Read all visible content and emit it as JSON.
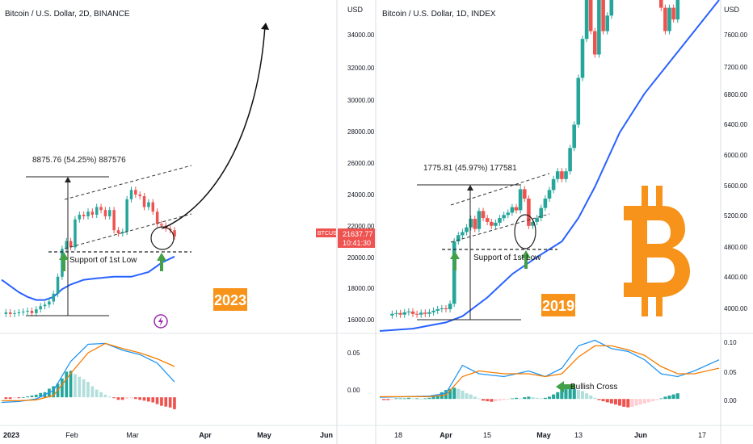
{
  "left_panel": {
    "title": "Bitcoin / U.S. Dollar, 2D, BINANCE",
    "currency_label": "USD",
    "price_ticks": [
      "34000.00",
      "32000.00",
      "30000.00",
      "28000.00",
      "26000.00",
      "24000.00",
      "22000.00",
      "20000.00",
      "18000.00",
      "16000.00"
    ],
    "price_badge": {
      "ticker": "BTCUSD",
      "price": "21637.77",
      "countdown": "10:41:30"
    },
    "range_label": "8875.76 (54.25%) 887576",
    "support_label": "Support of 1st Low",
    "year_label": "2023",
    "macd_ticks": [
      "0.05",
      "0.00"
    ],
    "time_ticks": [
      "2023",
      "Feb",
      "Mar",
      "Apr",
      "May",
      "Jun"
    ]
  },
  "right_panel": {
    "title": "Bitcoin / U.S. Dollar, 1D, INDEX",
    "currency_label": "USD",
    "price_ticks": [
      "7600.00",
      "7200.00",
      "6800.00",
      "6400.00",
      "6000.00",
      "5600.00",
      "5200.00",
      "4800.00",
      "4400.00",
      "4000.00"
    ],
    "range_label": "1775.81 (45.97%) 177581",
    "support_label": "Support of 1st Low",
    "cross_label": "Bullish Cross",
    "year_label": "2019",
    "macd_ticks": [
      "0.10",
      "0.05",
      "0.00"
    ],
    "time_ticks": [
      "18",
      "Apr",
      "15",
      "May",
      "13",
      "Jun",
      "17"
    ]
  },
  "colors": {
    "up": "#26a69a",
    "down": "#ef5350",
    "ma": "#2962ff",
    "macd": "#2196f3",
    "signal": "#f57c00",
    "badge": "#f7931a",
    "label_bg": "#f7931a"
  },
  "chart_data": [
    {
      "type": "candlestick",
      "title": "Bitcoin / U.S. Dollar, 2D, BINANCE",
      "ylabel": "USD",
      "ylim": [
        15500,
        35500
      ],
      "moving_average": [
        [
          0,
          18800
        ],
        [
          10,
          18400
        ],
        [
          20,
          18000
        ],
        [
          30,
          17700
        ],
        [
          40,
          17500
        ],
        [
          50,
          17500
        ],
        [
          60,
          17700
        ],
        [
          70,
          18200
        ],
        [
          80,
          18500
        ],
        [
          95,
          18800
        ],
        [
          110,
          18900
        ],
        [
          130,
          19000
        ],
        [
          150,
          19000
        ],
        [
          170,
          19300
        ],
        [
          185,
          19900
        ],
        [
          200,
          20300
        ]
      ],
      "candles": [
        [
          5,
          16600,
          16700
        ],
        [
          10,
          16700,
          16600
        ],
        [
          15,
          16600,
          16650
        ],
        [
          20,
          16650,
          16700
        ],
        [
          25,
          16700,
          16750
        ],
        [
          30,
          16750,
          16800
        ],
        [
          35,
          16800,
          16650
        ],
        [
          40,
          16650,
          16900
        ],
        [
          45,
          16900,
          17100
        ],
        [
          50,
          17100,
          17200
        ],
        [
          55,
          17200,
          17400
        ],
        [
          60,
          17400,
          17900
        ],
        [
          65,
          17900,
          19000
        ],
        [
          70,
          19000,
          20800
        ],
        [
          75,
          20800,
          21300
        ],
        [
          80,
          21300,
          20900
        ],
        [
          85,
          20900,
          22700
        ],
        [
          90,
          22700,
          23000
        ],
        [
          95,
          23000,
          22900
        ],
        [
          100,
          22900,
          23200
        ],
        [
          105,
          23200,
          23000
        ],
        [
          110,
          23000,
          23500
        ],
        [
          115,
          23500,
          23300
        ],
        [
          120,
          23300,
          22900
        ],
        [
          125,
          22900,
          23300
        ],
        [
          130,
          23300,
          22000
        ],
        [
          135,
          22000,
          21800
        ],
        [
          140,
          21800,
          21900
        ],
        [
          145,
          21900,
          24000
        ],
        [
          150,
          24000,
          24600
        ],
        [
          155,
          24600,
          24300
        ],
        [
          160,
          24300,
          24200
        ],
        [
          165,
          24200,
          23500
        ],
        [
          170,
          23500,
          23800
        ],
        [
          175,
          23800,
          23200
        ],
        [
          180,
          23200,
          22400
        ],
        [
          185,
          22400,
          22300
        ],
        [
          190,
          22300,
          22100
        ],
        [
          195,
          22100,
          22000
        ],
        [
          200,
          22000,
          21600
        ]
      ],
      "macd": [
        [
          0,
          -0.006
        ],
        [
          20,
          -0.005
        ],
        [
          40,
          -0.002
        ],
        [
          60,
          0.008
        ],
        [
          80,
          0.042
        ],
        [
          100,
          0.062
        ],
        [
          120,
          0.063
        ],
        [
          140,
          0.055
        ],
        [
          160,
          0.05
        ],
        [
          180,
          0.04
        ],
        [
          200,
          0.018
        ]
      ],
      "signal": [
        [
          0,
          -0.004
        ],
        [
          20,
          -0.004
        ],
        [
          40,
          -0.003
        ],
        [
          60,
          0.002
        ],
        [
          80,
          0.028
        ],
        [
          100,
          0.052
        ],
        [
          120,
          0.063
        ],
        [
          140,
          0.057
        ],
        [
          160,
          0.052
        ],
        [
          180,
          0.045
        ],
        [
          200,
          0.036
        ]
      ],
      "macd_histogram": [
        [
          5,
          -0.002
        ],
        [
          10,
          -0.002
        ],
        [
          15,
          -0.001
        ],
        [
          20,
          -0.001
        ],
        [
          25,
          0.0
        ],
        [
          30,
          0.001
        ],
        [
          35,
          0.002
        ],
        [
          40,
          0.003
        ],
        [
          45,
          0.005
        ],
        [
          50,
          0.006
        ],
        [
          55,
          0.01
        ],
        [
          60,
          0.013
        ],
        [
          65,
          0.016
        ],
        [
          70,
          0.022
        ],
        [
          75,
          0.03
        ],
        [
          80,
          0.031
        ],
        [
          85,
          0.027
        ],
        [
          90,
          0.024
        ],
        [
          95,
          0.021
        ],
        [
          100,
          0.018
        ],
        [
          105,
          0.013
        ],
        [
          110,
          0.009
        ],
        [
          115,
          0.006
        ],
        [
          120,
          0.003
        ],
        [
          125,
          0.001
        ],
        [
          130,
          -0.001
        ],
        [
          135,
          -0.003
        ],
        [
          140,
          -0.003
        ],
        [
          145,
          -0.002
        ],
        [
          150,
          -0.001
        ],
        [
          155,
          -0.002
        ],
        [
          160,
          -0.003
        ],
        [
          165,
          -0.004
        ],
        [
          170,
          -0.005
        ],
        [
          175,
          -0.006
        ],
        [
          180,
          -0.008
        ],
        [
          185,
          -0.01
        ],
        [
          190,
          -0.011
        ],
        [
          195,
          -0.012
        ],
        [
          200,
          -0.014
        ]
      ]
    },
    {
      "type": "candlestick",
      "title": "Bitcoin / U.S. Dollar, 1D, INDEX",
      "ylabel": "USD",
      "ylim": [
        3750,
        8000
      ],
      "moving_average": [
        [
          0,
          3750
        ],
        [
          40,
          3780
        ],
        [
          80,
          3860
        ],
        [
          100,
          3940
        ],
        [
          130,
          4180
        ],
        [
          160,
          4480
        ],
        [
          190,
          4700
        ],
        [
          220,
          4900
        ],
        [
          240,
          5200
        ],
        [
          260,
          5600
        ],
        [
          290,
          6300
        ],
        [
          320,
          6800
        ],
        [
          350,
          7200
        ],
        [
          380,
          7600
        ],
        [
          410,
          8000
        ]
      ],
      "candles": [
        [
          15,
          3950,
          3970
        ],
        [
          20,
          3970,
          3980
        ],
        [
          25,
          3980,
          3960
        ],
        [
          30,
          3960,
          3990
        ],
        [
          35,
          3990,
          4000
        ],
        [
          40,
          4000,
          3970
        ],
        [
          45,
          3970,
          3960
        ],
        [
          50,
          3960,
          3985
        ],
        [
          55,
          3985,
          3970
        ],
        [
          60,
          3970,
          3990
        ],
        [
          65,
          3990,
          4010
        ],
        [
          70,
          4010,
          4030
        ],
        [
          75,
          4030,
          4040
        ],
        [
          80,
          4040,
          4030
        ],
        [
          85,
          4030,
          4100
        ],
        [
          90,
          4100,
          4900
        ],
        [
          95,
          4900,
          4980
        ],
        [
          100,
          4980,
          5020
        ],
        [
          105,
          5020,
          5080
        ],
        [
          110,
          5080,
          5190
        ],
        [
          115,
          5190,
          5060
        ],
        [
          120,
          5060,
          5290
        ],
        [
          125,
          5290,
          5200
        ],
        [
          130,
          5200,
          5150
        ],
        [
          135,
          5150,
          5100
        ],
        [
          140,
          5100,
          5140
        ],
        [
          145,
          5140,
          5200
        ],
        [
          150,
          5200,
          5240
        ],
        [
          155,
          5240,
          5270
        ],
        [
          160,
          5270,
          5340
        ],
        [
          165,
          5340,
          5300
        ],
        [
          170,
          5300,
          5570
        ],
        [
          175,
          5570,
          5450
        ],
        [
          180,
          5450,
          5100
        ],
        [
          185,
          5100,
          5150
        ],
        [
          190,
          5150,
          5200
        ],
        [
          195,
          5200,
          5330
        ],
        [
          200,
          5330,
          5450
        ],
        [
          205,
          5450,
          5560
        ],
        [
          210,
          5560,
          5700
        ],
        [
          215,
          5700,
          5800
        ],
        [
          220,
          5800,
          5700
        ],
        [
          225,
          5700,
          5800
        ],
        [
          230,
          5800,
          6100
        ],
        [
          235,
          6100,
          6400
        ],
        [
          240,
          6400,
          7000
        ],
        [
          245,
          7000,
          7500
        ],
        [
          250,
          7500,
          8000
        ],
        [
          255,
          8000,
          7600
        ],
        [
          260,
          7600,
          7300
        ],
        [
          265,
          7300,
          8000
        ],
        [
          270,
          8000,
          7600
        ],
        [
          275,
          7600,
          7800
        ],
        [
          280,
          7800,
          8000
        ],
        [
          340,
          8000,
          7900
        ],
        [
          345,
          7900,
          7600
        ],
        [
          350,
          7600,
          7900
        ],
        [
          355,
          7900,
          7750
        ],
        [
          360,
          7750,
          8000
        ]
      ],
      "macd": [
        [
          0,
          0.003
        ],
        [
          60,
          0.005
        ],
        [
          80,
          0.01
        ],
        [
          100,
          0.06
        ],
        [
          120,
          0.045
        ],
        [
          150,
          0.04
        ],
        [
          180,
          0.05
        ],
        [
          200,
          0.04
        ],
        [
          220,
          0.055
        ],
        [
          240,
          0.095
        ],
        [
          260,
          0.105
        ],
        [
          280,
          0.09
        ],
        [
          300,
          0.085
        ],
        [
          320,
          0.07
        ],
        [
          340,
          0.045
        ],
        [
          360,
          0.04
        ],
        [
          380,
          0.05
        ],
        [
          410,
          0.07
        ]
      ],
      "signal": [
        [
          0,
          0.004
        ],
        [
          60,
          0.004
        ],
        [
          80,
          0.007
        ],
        [
          100,
          0.04
        ],
        [
          120,
          0.05
        ],
        [
          150,
          0.045
        ],
        [
          180,
          0.045
        ],
        [
          200,
          0.04
        ],
        [
          220,
          0.045
        ],
        [
          240,
          0.075
        ],
        [
          260,
          0.095
        ],
        [
          280,
          0.095
        ],
        [
          300,
          0.088
        ],
        [
          320,
          0.078
        ],
        [
          340,
          0.058
        ],
        [
          360,
          0.045
        ],
        [
          380,
          0.045
        ],
        [
          410,
          0.055
        ]
      ],
      "macd_histogram": [
        [
          5,
          -0.002
        ],
        [
          10,
          -0.002
        ],
        [
          15,
          -0.001
        ],
        [
          20,
          0.001
        ],
        [
          25,
          0.001
        ],
        [
          30,
          0.001
        ],
        [
          35,
          0.002
        ],
        [
          40,
          0.001
        ],
        [
          45,
          0.001
        ],
        [
          50,
          0.0
        ],
        [
          55,
          0.001
        ],
        [
          60,
          0.002
        ],
        [
          65,
          0.004
        ],
        [
          70,
          0.006
        ],
        [
          75,
          0.012
        ],
        [
          80,
          0.016
        ],
        [
          85,
          0.018
        ],
        [
          90,
          0.02
        ],
        [
          95,
          0.018
        ],
        [
          100,
          0.015
        ],
        [
          105,
          0.01
        ],
        [
          110,
          0.008
        ],
        [
          115,
          0.004
        ],
        [
          120,
          0.001
        ],
        [
          125,
          -0.003
        ],
        [
          130,
          -0.004
        ],
        [
          135,
          -0.005
        ],
        [
          140,
          -0.004
        ],
        [
          145,
          -0.003
        ],
        [
          150,
          -0.002
        ],
        [
          155,
          -0.001
        ],
        [
          160,
          0.001
        ],
        [
          165,
          0.002
        ],
        [
          170,
          0.001
        ],
        [
          175,
          0.003
        ],
        [
          180,
          0.004
        ],
        [
          185,
          0.003
        ],
        [
          190,
          0.002
        ],
        [
          195,
          0.001
        ],
        [
          200,
          0.002
        ],
        [
          205,
          0.004
        ],
        [
          210,
          0.008
        ],
        [
          215,
          0.012
        ],
        [
          220,
          0.016
        ],
        [
          225,
          0.018
        ],
        [
          230,
          0.018
        ],
        [
          235,
          0.018
        ],
        [
          240,
          0.016
        ],
        [
          245,
          0.014
        ],
        [
          250,
          0.01
        ],
        [
          255,
          0.006
        ],
        [
          260,
          0.002
        ],
        [
          265,
          -0.002
        ],
        [
          270,
          -0.004
        ],
        [
          275,
          -0.006
        ],
        [
          280,
          -0.008
        ],
        [
          285,
          -0.01
        ],
        [
          290,
          -0.012
        ],
        [
          295,
          -0.014
        ],
        [
          300,
          -0.015
        ],
        [
          305,
          -0.014
        ],
        [
          310,
          -0.012
        ],
        [
          315,
          -0.01
        ],
        [
          320,
          -0.008
        ],
        [
          325,
          -0.006
        ],
        [
          330,
          -0.004
        ],
        [
          335,
          -0.002
        ],
        [
          340,
          0.001
        ],
        [
          345,
          0.004
        ],
        [
          350,
          0.006
        ],
        [
          355,
          0.008
        ],
        [
          360,
          0.01
        ]
      ]
    }
  ]
}
